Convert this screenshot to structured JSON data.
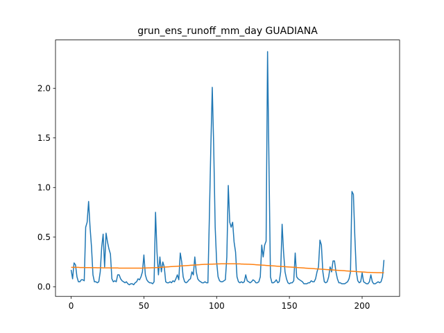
{
  "chart_data": {
    "type": "line",
    "title": "grun_ens_runoff_mm_day GUADIANA",
    "x": [
      0,
      1,
      2,
      3,
      4,
      5,
      6,
      7,
      8,
      9,
      10,
      11,
      12,
      13,
      14,
      15,
      16,
      17,
      18,
      19,
      20,
      21,
      22,
      23,
      24,
      25,
      26,
      27,
      28,
      29,
      30,
      31,
      32,
      33,
      34,
      35,
      36,
      37,
      38,
      39,
      40,
      41,
      42,
      43,
      44,
      45,
      46,
      47,
      48,
      49,
      50,
      51,
      52,
      53,
      54,
      55,
      56,
      57,
      58,
      59,
      60,
      61,
      62,
      63,
      64,
      65,
      66,
      67,
      68,
      69,
      70,
      71,
      72,
      73,
      74,
      75,
      76,
      77,
      78,
      79,
      80,
      81,
      82,
      83,
      84,
      85,
      86,
      87,
      88,
      89,
      90,
      91,
      92,
      93,
      94,
      95,
      96,
      97,
      98,
      99,
      100,
      101,
      102,
      103,
      104,
      105,
      106,
      107,
      108,
      109,
      110,
      111,
      112,
      113,
      114,
      115,
      116,
      117,
      118,
      119,
      120,
      121,
      122,
      123,
      124,
      125,
      126,
      127,
      128,
      129,
      130,
      131,
      132,
      133,
      134,
      135,
      136,
      137,
      138,
      139,
      140,
      141,
      142,
      143,
      144,
      145,
      146,
      147,
      148,
      149,
      150,
      151,
      152,
      153,
      154,
      155,
      156,
      157,
      158,
      159,
      160,
      161,
      162,
      163,
      164,
      165,
      166,
      167,
      168,
      169,
      170,
      171,
      172,
      173,
      174,
      175,
      176,
      177,
      178,
      179,
      180,
      181,
      182,
      183,
      184,
      185,
      186,
      187,
      188,
      189,
      190,
      191,
      192,
      193,
      194,
      195,
      196,
      197,
      198,
      199,
      200,
      201,
      202,
      203,
      204,
      205,
      206,
      207,
      208,
      209,
      210,
      211,
      212,
      213,
      214,
      215
    ],
    "series": [
      {
        "color": "#1f77b4",
        "values": [
          0.17,
          0.08,
          0.24,
          0.22,
          0.1,
          0.05,
          0.05,
          0.07,
          0.07,
          0.06,
          0.6,
          0.65,
          0.86,
          0.6,
          0.4,
          0.12,
          0.05,
          0.05,
          0.04,
          0.05,
          0.15,
          0.4,
          0.53,
          0.2,
          0.54,
          0.45,
          0.38,
          0.33,
          0.08,
          0.05,
          0.06,
          0.05,
          0.12,
          0.12,
          0.08,
          0.06,
          0.05,
          0.04,
          0.05,
          0.03,
          0.02,
          0.03,
          0.03,
          0.02,
          0.04,
          0.05,
          0.08,
          0.07,
          0.1,
          0.15,
          0.32,
          0.12,
          0.07,
          0.05,
          0.04,
          0.04,
          0.03,
          0.05,
          0.75,
          0.35,
          0.12,
          0.3,
          0.15,
          0.25,
          0.2,
          0.05,
          0.04,
          0.04,
          0.05,
          0.04,
          0.06,
          0.05,
          0.08,
          0.12,
          0.07,
          0.34,
          0.25,
          0.1,
          0.05,
          0.04,
          0.05,
          0.07,
          0.08,
          0.15,
          0.12,
          0.3,
          0.15,
          0.08,
          0.06,
          0.05,
          0.04,
          0.04,
          0.05,
          0.04,
          0.04,
          0.7,
          1.4,
          2.01,
          1.4,
          0.6,
          0.25,
          0.1,
          0.06,
          0.05,
          0.05,
          0.06,
          0.07,
          0.3,
          1.02,
          0.65,
          0.6,
          0.65,
          0.45,
          0.35,
          0.1,
          0.05,
          0.04,
          0.05,
          0.04,
          0.05,
          0.12,
          0.06,
          0.05,
          0.04,
          0.05,
          0.07,
          0.06,
          0.04,
          0.04,
          0.05,
          0.1,
          0.42,
          0.3,
          0.42,
          0.46,
          2.37,
          1.2,
          0.1,
          0.04,
          0.04,
          0.05,
          0.07,
          0.04,
          0.05,
          0.15,
          0.63,
          0.35,
          0.15,
          0.08,
          0.04,
          0.03,
          0.04,
          0.04,
          0.06,
          0.34,
          0.1,
          0.08,
          0.07,
          0.06,
          0.05,
          0.03,
          0.03,
          0.03,
          0.04,
          0.04,
          0.06,
          0.05,
          0.05,
          0.08,
          0.15,
          0.2,
          0.47,
          0.42,
          0.15,
          0.05,
          0.04,
          0.05,
          0.1,
          0.2,
          0.15,
          0.26,
          0.26,
          0.15,
          0.08,
          0.04,
          0.04,
          0.03,
          0.03,
          0.03,
          0.04,
          0.05,
          0.08,
          0.15,
          0.96,
          0.93,
          0.5,
          0.15,
          0.06,
          0.04,
          0.05,
          0.14,
          0.05,
          0.04,
          0.03,
          0.03,
          0.05,
          0.12,
          0.05,
          0.03,
          0.03,
          0.04,
          0.05,
          0.04,
          0.05,
          0.1,
          0.27
        ]
      },
      {
        "color": "#ff7f0e",
        "values": [
          0.195,
          0.195,
          0.195,
          0.195,
          0.195,
          0.195,
          0.194,
          0.194,
          0.194,
          0.194,
          0.193,
          0.193,
          0.193,
          0.193,
          0.192,
          0.192,
          0.192,
          0.192,
          0.191,
          0.191,
          0.191,
          0.191,
          0.19,
          0.19,
          0.19,
          0.19,
          0.19,
          0.189,
          0.189,
          0.189,
          0.189,
          0.189,
          0.189,
          0.188,
          0.188,
          0.188,
          0.188,
          0.188,
          0.188,
          0.188,
          0.188,
          0.188,
          0.188,
          0.188,
          0.188,
          0.188,
          0.188,
          0.188,
          0.188,
          0.188,
          0.189,
          0.189,
          0.189,
          0.19,
          0.19,
          0.191,
          0.191,
          0.192,
          0.193,
          0.193,
          0.194,
          0.195,
          0.196,
          0.197,
          0.198,
          0.199,
          0.2,
          0.201,
          0.202,
          0.203,
          0.204,
          0.205,
          0.206,
          0.207,
          0.208,
          0.209,
          0.21,
          0.211,
          0.212,
          0.213,
          0.214,
          0.215,
          0.216,
          0.217,
          0.218,
          0.219,
          0.22,
          0.221,
          0.222,
          0.223,
          0.224,
          0.225,
          0.226,
          0.226,
          0.227,
          0.227,
          0.228,
          0.228,
          0.229,
          0.229,
          0.23,
          0.23,
          0.23,
          0.231,
          0.231,
          0.231,
          0.231,
          0.231,
          0.231,
          0.231,
          0.231,
          0.231,
          0.231,
          0.231,
          0.23,
          0.23,
          0.23,
          0.229,
          0.229,
          0.228,
          0.228,
          0.227,
          0.227,
          0.226,
          0.225,
          0.224,
          0.223,
          0.222,
          0.221,
          0.22,
          0.219,
          0.218,
          0.217,
          0.216,
          0.215,
          0.214,
          0.213,
          0.212,
          0.211,
          0.21,
          0.209,
          0.208,
          0.207,
          0.206,
          0.205,
          0.204,
          0.203,
          0.202,
          0.201,
          0.2,
          0.199,
          0.198,
          0.197,
          0.196,
          0.195,
          0.194,
          0.193,
          0.192,
          0.191,
          0.19,
          0.189,
          0.188,
          0.187,
          0.186,
          0.185,
          0.184,
          0.183,
          0.182,
          0.181,
          0.18,
          0.179,
          0.178,
          0.177,
          0.176,
          0.175,
          0.174,
          0.173,
          0.172,
          0.171,
          0.17,
          0.169,
          0.168,
          0.167,
          0.166,
          0.165,
          0.164,
          0.163,
          0.162,
          0.161,
          0.16,
          0.159,
          0.158,
          0.157,
          0.156,
          0.155,
          0.154,
          0.153,
          0.152,
          0.151,
          0.15,
          0.149,
          0.148,
          0.147,
          0.146,
          0.145,
          0.145,
          0.144,
          0.144,
          0.143,
          0.143,
          0.142,
          0.142,
          0.142,
          0.141,
          0.141,
          0.141
        ]
      }
    ],
    "xlim": [
      -10.75,
      225.75
    ],
    "xticks": [
      0,
      50,
      100,
      150,
      200
    ],
    "ylim": [
      -0.097,
      2.487
    ],
    "yticks": [
      {
        "value": 0,
        "label": "0.0"
      },
      0.5,
      {
        "value": 1,
        "label": "1.0"
      },
      1.5,
      {
        "value": 2,
        "label": "2.0"
      }
    ]
  }
}
